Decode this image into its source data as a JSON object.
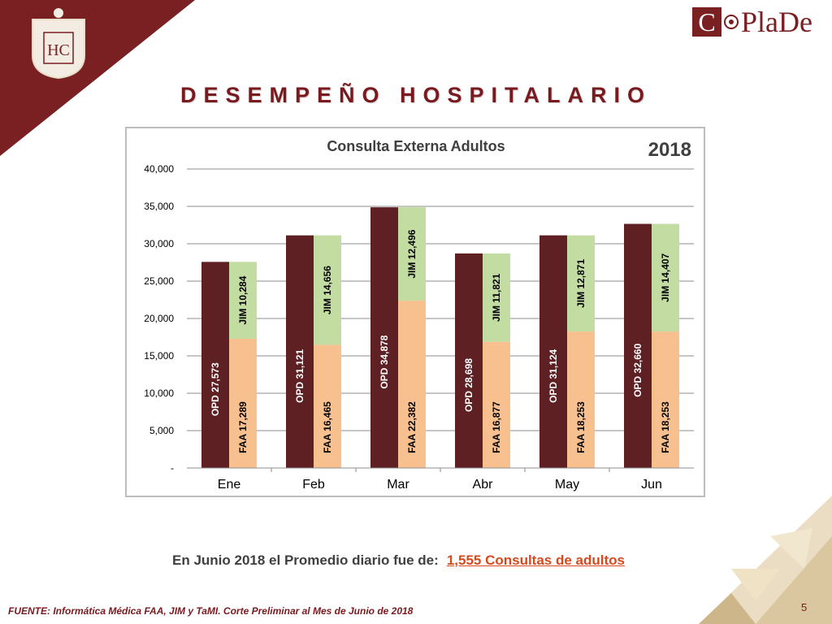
{
  "page": {
    "title": "DESEMPEÑO HOSPITALARIO",
    "logo_letter": "C",
    "logo_rest": "PlaDe",
    "seal_letters": "HC",
    "summary_prefix": "En Junio 2018 el Promedio diario fue de:",
    "summary_highlight": "1,555 Consultas de adultos",
    "source": "FUENTE: Informática Médica  FAA, JIM y TaMI. Corte Preliminar al Mes de Junio de 2018",
    "page_number": "5"
  },
  "colors": {
    "brand": "#7a1f22",
    "opd": "#5e2023",
    "faa": "#f9c08f",
    "jim": "#c3dca2",
    "highlight": "#d64a1f"
  },
  "chart_data": {
    "type": "bar",
    "title": "Consulta Externa Adultos",
    "year_label": "2018",
    "categories": [
      "Ene",
      "Feb",
      "Mar",
      "Abr",
      "May",
      "Jun"
    ],
    "ylim": [
      0,
      40000
    ],
    "yticks": [
      0,
      5000,
      10000,
      15000,
      20000,
      25000,
      30000,
      35000,
      40000
    ],
    "ytick_labels": [
      "-",
      "5,000",
      "10,000",
      "15,000",
      "20,000",
      "25,000",
      "30,000",
      "35,000",
      "40,000"
    ],
    "grid": true,
    "series": [
      {
        "name": "OPD",
        "stack": "opd",
        "values": [
          27573,
          31121,
          34878,
          28698,
          31124,
          32660
        ],
        "labels": [
          "OPD  27,573",
          "OPD  31,121",
          "OPD  34,878",
          "OPD  28,698",
          "OPD  31,124",
          "OPD  32,660"
        ]
      },
      {
        "name": "FAA",
        "stack": "faa_jim",
        "values": [
          17289,
          16465,
          22382,
          16877,
          18253,
          18253
        ],
        "labels": [
          "FAA  17,289",
          "FAA  16,465",
          "FAA  22,382",
          "FAA  16,877",
          "FAA  18,253",
          "FAA  18,253"
        ]
      },
      {
        "name": "JIM",
        "stack": "faa_jim",
        "values": [
          10284,
          14656,
          12496,
          11821,
          12871,
          14407
        ],
        "labels": [
          "JIM  10,284",
          "JIM  14,656",
          "JIM  12,496",
          "JIM  11,821",
          "JIM  12,871",
          "JIM  14,407"
        ]
      }
    ]
  }
}
